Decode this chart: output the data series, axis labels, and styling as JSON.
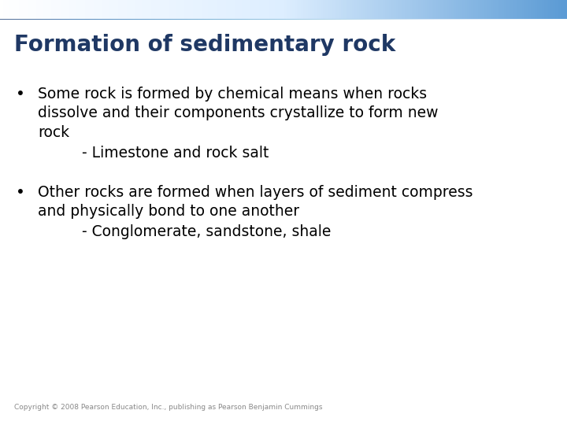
{
  "title": "Formation of sedimentary rock",
  "title_color": "#1F3864",
  "title_fontsize": 20,
  "title_bold": true,
  "background_color": "#ffffff",
  "header_bar_color_left": "#5B9BD5",
  "header_bar_color_right": "#ffffff",
  "bullet_color": "#000000",
  "bullet_fontsize": 13.5,
  "sub_fontsize": 13.5,
  "copyright": "Copyright © 2008 Pearson Education, Inc., publishing as Pearson Benjamin Cummings",
  "copyright_fontsize": 6.5,
  "bullet1_line1": "Some rock is formed by chemical means when rocks",
  "bullet1_line2": "dissolve and their components crystallize to form new",
  "bullet1_line3": "rock",
  "bullet1_sub": "    - Limestone and rock salt",
  "bullet2_line1": "Other rocks are formed when layers of sediment compress",
  "bullet2_line2": "and physically bond to one another",
  "bullet2_sub": "    - Conglomerate, sandstone, shale"
}
